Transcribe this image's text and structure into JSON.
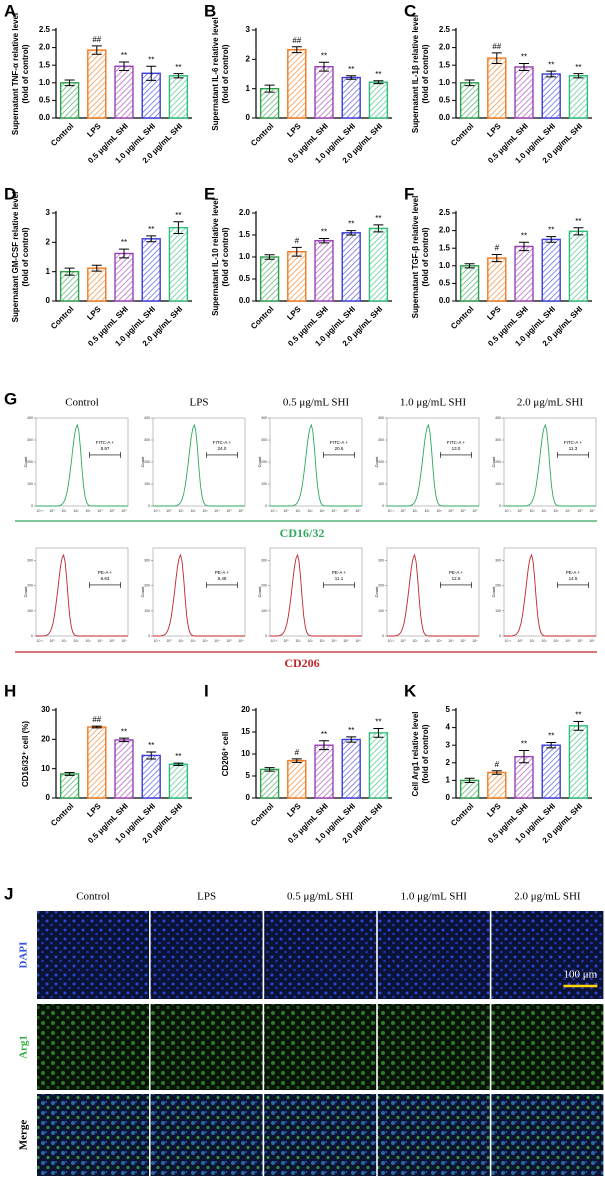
{
  "chart_data": [
    {
      "type": "bar",
      "panel": "A",
      "ylabel": [
        "Supernatant TNF-α relative level",
        "(fold of control)"
      ],
      "categories": [
        "Control",
        "LPS",
        "0.5 μg/mL SHI",
        "1.0 μg/mL SHI",
        "2.0 μg/mL SHI"
      ],
      "values": [
        1.0,
        1.93,
        1.47,
        1.27,
        1.2
      ],
      "errors": [
        0.08,
        0.12,
        0.12,
        0.2,
        0.06
      ],
      "annotations": [
        null,
        "##",
        "**",
        "**",
        "**"
      ],
      "colors": [
        "#2e9e4f",
        "#f07a1f",
        "#9b3fb5",
        "#3b3bd8",
        "#2ebd7a"
      ],
      "ylim": [
        0,
        2.5
      ],
      "yticks": [
        {
          "value": 0,
          "label": "0.0"
        },
        0.5,
        {
          "value": 1,
          "label": "1.0"
        },
        1.5,
        {
          "value": 2,
          "label": "2.0"
        },
        2.5
      ]
    },
    {
      "type": "bar",
      "panel": "B",
      "ylabel": [
        "Supernatant IL-6 relative level",
        "(fold of control)"
      ],
      "categories": [
        "Control",
        "LPS",
        "0.5 μg/mL SHI",
        "1.0 μg/mL SHI",
        "2.0 μg/mL SHI"
      ],
      "values": [
        1.0,
        2.33,
        1.75,
        1.38,
        1.22
      ],
      "errors": [
        0.12,
        0.1,
        0.15,
        0.06,
        0.05
      ],
      "annotations": [
        null,
        "##",
        "**",
        "**",
        "**"
      ],
      "colors": [
        "#2e9e4f",
        "#f07a1f",
        "#9b3fb5",
        "#3b3bd8",
        "#2ebd7a"
      ],
      "ylim": [
        0,
        3
      ],
      "yticks": [
        0,
        1,
        2,
        3
      ]
    },
    {
      "type": "bar",
      "panel": "C",
      "ylabel": [
        "Supernatant IL-1β relative level",
        "(fold of control)"
      ],
      "categories": [
        "Control",
        "LPS",
        "0.5 μg/mL SHI",
        "1.0 μg/mL SHI",
        "2.0 μg/mL SHI"
      ],
      "values": [
        1.0,
        1.7,
        1.45,
        1.25,
        1.2
      ],
      "errors": [
        0.08,
        0.15,
        0.1,
        0.08,
        0.06
      ],
      "annotations": [
        null,
        "##",
        "**",
        "**",
        "**"
      ],
      "colors": [
        "#2e9e4f",
        "#f07a1f",
        "#9b3fb5",
        "#3b3bd8",
        "#2ebd7a"
      ],
      "ylim": [
        0,
        2.5
      ],
      "yticks": [
        {
          "value": 0,
          "label": "0.0"
        },
        0.5,
        {
          "value": 1,
          "label": "1.0"
        },
        1.5,
        {
          "value": 2,
          "label": "2.0"
        },
        2.5
      ]
    },
    {
      "type": "bar",
      "panel": "D",
      "ylabel": [
        "Supernatant GM-CSF relative level",
        "(fold of control)"
      ],
      "categories": [
        "Control",
        "LPS",
        "0.5 μg/mL SHI",
        "1.0 μg/mL SHI",
        "2.0 μg/mL SHI"
      ],
      "values": [
        1.0,
        1.12,
        1.62,
        2.12,
        2.5
      ],
      "errors": [
        0.12,
        0.1,
        0.15,
        0.1,
        0.2
      ],
      "annotations": [
        null,
        null,
        "**",
        "**",
        "**"
      ],
      "colors": [
        "#2e9e4f",
        "#f07a1f",
        "#9b3fb5",
        "#3b3bd8",
        "#2ebd7a"
      ],
      "ylim": [
        0,
        3
      ],
      "yticks": [
        0,
        1,
        2,
        3
      ]
    },
    {
      "type": "bar",
      "panel": "E",
      "ylabel": [
        "Supernatant IL-10 relative level",
        "(fold of control)"
      ],
      "categories": [
        "Control",
        "LPS",
        "0.5 μg/mL SHI",
        "1.0 μg/mL SHI",
        "2.0 μg/mL SHI"
      ],
      "values": [
        1.0,
        1.12,
        1.37,
        1.55,
        1.65
      ],
      "errors": [
        0.05,
        0.1,
        0.05,
        0.05,
        0.08
      ],
      "annotations": [
        null,
        "#",
        "**",
        "**",
        "**"
      ],
      "colors": [
        "#2e9e4f",
        "#f07a1f",
        "#9b3fb5",
        "#3b3bd8",
        "#2ebd7a"
      ],
      "ylim": [
        0,
        2
      ],
      "yticks": [
        {
          "value": 0,
          "label": "0.0"
        },
        0.5,
        {
          "value": 1,
          "label": "1.0"
        },
        1.5,
        {
          "value": 2,
          "label": "2.0"
        }
      ]
    },
    {
      "type": "bar",
      "panel": "F",
      "ylabel": [
        "Supernatant TGF-β relative level",
        "(fold of control)"
      ],
      "categories": [
        "Control",
        "LPS",
        "0.5 μg/mL SHI",
        "1.0 μg/mL SHI",
        "2.0 μg/mL SHI"
      ],
      "values": [
        1.0,
        1.22,
        1.55,
        1.75,
        1.98
      ],
      "errors": [
        0.06,
        0.1,
        0.12,
        0.08,
        0.1
      ],
      "annotations": [
        null,
        "#",
        "**",
        "**",
        "**"
      ],
      "colors": [
        "#2e9e4f",
        "#f07a1f",
        "#9b3fb5",
        "#3b3bd8",
        "#2ebd7a"
      ],
      "ylim": [
        0,
        2.5
      ],
      "yticks": [
        {
          "value": 0,
          "label": "0.0"
        },
        0.5,
        {
          "value": 1,
          "label": "1.0"
        },
        1.5,
        {
          "value": 2,
          "label": "2.0"
        },
        2.5
      ]
    },
    {
      "type": "bar",
      "panel": "H",
      "ylabel": [
        "CD16/32⁺ cell (%)"
      ],
      "categories": [
        "Control",
        "LPS",
        "0.5 μg/mL SHI",
        "1.0 μg/mL SHI",
        "2.0 μg/mL SHI"
      ],
      "values": [
        8.2,
        24.2,
        19.8,
        14.5,
        11.5
      ],
      "errors": [
        0.5,
        0.3,
        0.6,
        1.2,
        0.4
      ],
      "annotations": [
        null,
        "##",
        "**",
        "**",
        "**"
      ],
      "colors": [
        "#2e9e4f",
        "#f07a1f",
        "#9b3fb5",
        "#3b3bd8",
        "#2ebd7a"
      ],
      "ylim": [
        0,
        30
      ],
      "yticks": [
        0,
        10,
        20,
        30
      ]
    },
    {
      "type": "bar",
      "panel": "I",
      "ylabel": [
        "CD206⁺ cell"
      ],
      "categories": [
        "Control",
        "LPS",
        "0.5 μg/mL SHI",
        "1.0 μg/mL SHI",
        "2.0 μg/mL SHI"
      ],
      "values": [
        6.5,
        8.5,
        12,
        13.3,
        14.8
      ],
      "errors": [
        0.4,
        0.4,
        1.0,
        0.6,
        1.0
      ],
      "annotations": [
        null,
        "#",
        "**",
        "**",
        "**"
      ],
      "colors": [
        "#2e9e4f",
        "#f07a1f",
        "#9b3fb5",
        "#3b3bd8",
        "#2ebd7a"
      ],
      "ylim": [
        0,
        20
      ],
      "yticks": [
        0,
        5,
        10,
        15,
        20
      ]
    },
    {
      "type": "bar",
      "panel": "K",
      "ylabel": [
        "Cell Arg1 relative level",
        "(fold of control)"
      ],
      "categories": [
        "Control",
        "LPS",
        "0.5 μg/mL SHI",
        "1.0 μg/mL SHI",
        "2.0 μg/mL SHI"
      ],
      "values": [
        1.0,
        1.45,
        2.35,
        3.0,
        4.1
      ],
      "errors": [
        0.12,
        0.1,
        0.35,
        0.15,
        0.25
      ],
      "annotations": [
        null,
        "#",
        "**",
        "**",
        "**"
      ],
      "colors": [
        "#2e9e4f",
        "#f07a1f",
        "#9b3fb5",
        "#3b3bd8",
        "#2ebd7a"
      ],
      "ylim": [
        0,
        5
      ],
      "yticks": [
        0,
        1,
        2,
        3,
        4,
        5
      ]
    }
  ],
  "flow": {
    "panel": "G",
    "columns": [
      "Control",
      "LPS",
      "0.5 μg/mL SHI",
      "1.0 μg/mL SHI",
      "2.0 μg/mL SHI"
    ],
    "y_label": "Count",
    "xticks": [
      "10⁻¹",
      "10⁰",
      "10¹",
      "10²",
      "10³",
      "10⁴",
      "10⁵",
      "10⁶"
    ],
    "rows": [
      {
        "name": "CD16/32",
        "color": "#2eaa5c",
        "gate": "FITC-A +",
        "gate_values": [
          "8.97",
          "24.0",
          "20.6",
          "13.0",
          "11.3"
        ],
        "ylim": [
          0,
          400
        ],
        "yticks": [
          0,
          100,
          200,
          300,
          400
        ]
      },
      {
        "name": "CD206",
        "color": "#c0262d",
        "gate": "PE-A +",
        "gate_values": [
          "6.63",
          "8.48",
          "11.1",
          "12.6",
          "14.5"
        ],
        "ylim": [
          0,
          350
        ],
        "yticks": [
          0,
          100,
          200,
          300
        ]
      }
    ]
  },
  "microscopy": {
    "panel": "J",
    "columns": [
      "Control",
      "LPS",
      "0.5 μg/mL SHI",
      "1.0 μg/mL SHI",
      "2.0 μg/mL SHI"
    ],
    "rows": [
      "DAPI",
      "Arg1",
      "Merge"
    ],
    "scale_bar": "100 μm"
  }
}
